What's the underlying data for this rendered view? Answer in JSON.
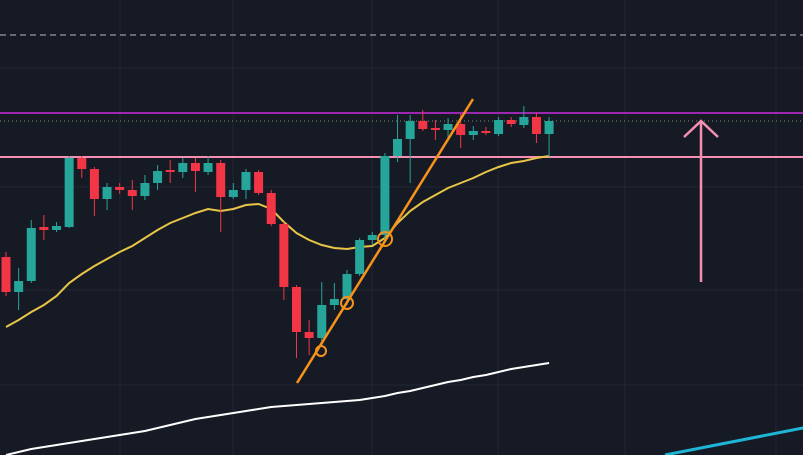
{
  "chart_data": {
    "type": "candlestick",
    "ylim": [
      0,
      455
    ],
    "up_color": "#26a69a",
    "down_color": "#f23645",
    "open": [
      198,
      163,
      174,
      228,
      225,
      228,
      297,
      286,
      256,
      268,
      265,
      259,
      272,
      285,
      283,
      292,
      283,
      292,
      258,
      265,
      283,
      262,
      231,
      168,
      123,
      117,
      150,
      156,
      181,
      215,
      220,
      299,
      316,
      334,
      327,
      325,
      331,
      320,
      324,
      321,
      335,
      330,
      338,
      321
    ],
    "high": [
      203,
      187,
      235,
      240,
      233,
      299,
      299,
      288,
      272,
      272,
      275,
      280,
      290,
      295,
      297,
      297,
      299,
      295,
      272,
      286,
      285,
      265,
      233,
      170,
      135,
      173,
      172,
      185,
      217,
      223,
      302,
      340,
      340,
      345,
      335,
      337,
      341,
      329,
      328,
      338,
      338,
      349,
      342,
      338
    ],
    "low": [
      159,
      145,
      172,
      215,
      223,
      227,
      277,
      239,
      245,
      261,
      245,
      255,
      265,
      272,
      277,
      263,
      280,
      223,
      256,
      256,
      260,
      229,
      155,
      97,
      100,
      110,
      145,
      150,
      179,
      210,
      215,
      293,
      272,
      324,
      315,
      315,
      307,
      315,
      320,
      319,
      328,
      327,
      312,
      298
    ],
    "close": [
      163,
      174,
      227,
      225,
      229,
      297,
      286,
      256,
      268,
      265,
      259,
      272,
      284,
      283,
      292,
      284,
      292,
      258,
      265,
      283,
      262,
      231,
      168,
      123,
      117,
      150,
      156,
      181,
      215,
      220,
      299,
      316,
      334,
      326,
      325,
      331,
      320,
      324,
      322,
      335,
      331,
      338,
      321,
      334
    ],
    "moving_averages": [
      {
        "color": "#e8c547",
        "values": [
          128,
          135,
          143,
          150,
          159,
          172,
          181,
          189,
          196,
          203,
          209,
          217,
          225,
          232,
          237,
          242,
          246,
          244,
          246,
          250,
          251,
          246,
          233,
          222,
          215,
          210,
          207,
          206,
          208,
          209,
          217,
          232,
          244,
          253,
          260,
          267,
          272,
          277,
          283,
          288,
          292,
          294,
          297,
          299
        ]
      },
      {
        "color": "#ffffff",
        "values": [
          0,
          3,
          6,
          8,
          10,
          12,
          14,
          16,
          18,
          20,
          22,
          24,
          27,
          30,
          33,
          36,
          38,
          40,
          42,
          44,
          46,
          48,
          49,
          50,
          51,
          52,
          53,
          54,
          55,
          57,
          59,
          62,
          64,
          67,
          70,
          73,
          75,
          78,
          80,
          83,
          86,
          88,
          90,
          92
        ]
      }
    ],
    "levels": [
      {
        "value": 420,
        "color": "#b8bcc8",
        "style": "dashed"
      },
      {
        "value": 342,
        "color": "#9c27b0",
        "style": "solid"
      },
      {
        "value": 334,
        "color": "#7b8a6a",
        "style": "dotted"
      },
      {
        "value": 298,
        "color": "#f48fb1",
        "style": "solid"
      }
    ]
  }
}
